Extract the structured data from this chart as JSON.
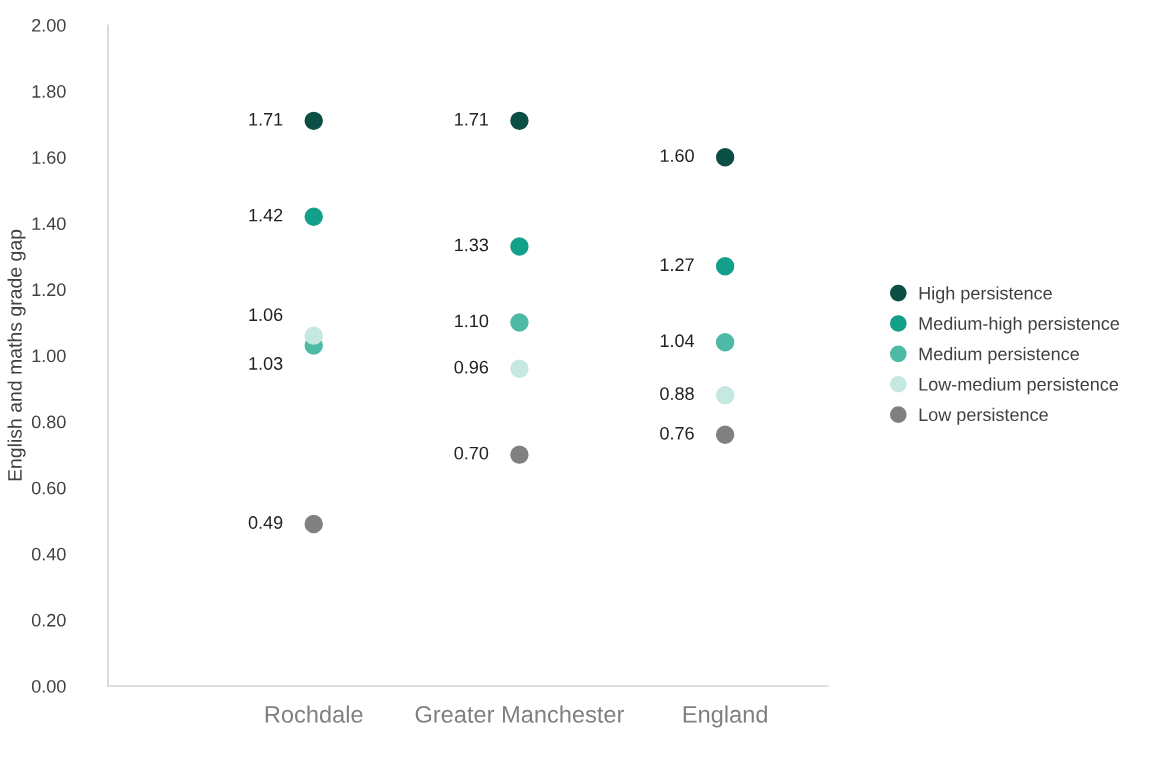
{
  "chart_data": {
    "type": "scatter",
    "ylabel": "English and maths grade gap",
    "categories": [
      "Rochdale",
      "Greater Manchester",
      "England"
    ],
    "ylim": [
      0,
      2
    ],
    "yticks": [
      {
        "value": 0,
        "label": "0.00"
      },
      {
        "value": 0.2,
        "label": "0.20"
      },
      {
        "value": 0.4,
        "label": "0.40"
      },
      {
        "value": 0.6,
        "label": "0.60"
      },
      {
        "value": 0.8,
        "label": "0.80"
      },
      {
        "value": 1.0,
        "label": "1.00"
      },
      {
        "value": 1.2,
        "label": "1.20"
      },
      {
        "value": 1.4,
        "label": "1.40"
      },
      {
        "value": 1.6,
        "label": "1.60"
      },
      {
        "value": 1.8,
        "label": "1.80"
      },
      {
        "value": 2.0,
        "label": "2.00"
      }
    ],
    "grid": false,
    "legend": "right",
    "marker": "circle",
    "series": [
      {
        "name": "High persistence",
        "color": "#0b4f44",
        "values": [
          1.71,
          1.71,
          1.6
        ],
        "value_labels": [
          "1.71",
          "1.71",
          "1.60"
        ]
      },
      {
        "name": "Medium-high persistence",
        "color": "#13a08a",
        "values": [
          1.42,
          1.33,
          1.27
        ],
        "value_labels": [
          "1.42",
          "1.33",
          "1.27"
        ]
      },
      {
        "name": "Medium persistence",
        "color": "#4dbaa6",
        "values": [
          1.03,
          1.1,
          1.04
        ],
        "value_labels": [
          "1.03",
          "1.10",
          "1.04"
        ]
      },
      {
        "name": "Low-medium persistence",
        "color": "#c5e8e1",
        "values": [
          1.06,
          0.96,
          0.88
        ],
        "value_labels": [
          "1.06",
          "0.96",
          "0.88"
        ]
      },
      {
        "name": "Low persistence",
        "color": "#808080",
        "values": [
          0.49,
          0.7,
          0.76
        ],
        "value_labels": [
          "0.49",
          "0.70",
          "0.76"
        ]
      }
    ]
  }
}
